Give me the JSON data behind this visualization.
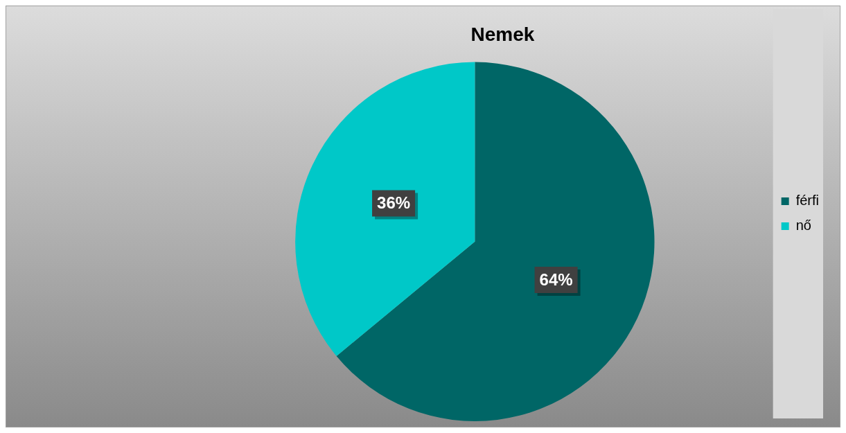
{
  "chart_data": {
    "type": "pie",
    "title": "Nemek",
    "categories": [
      "férfi",
      "nő"
    ],
    "values": [
      64,
      36
    ],
    "colors": [
      "#006666",
      "#00c8c8"
    ],
    "value_labels": [
      "64%",
      "36%"
    ],
    "legend": "right"
  }
}
